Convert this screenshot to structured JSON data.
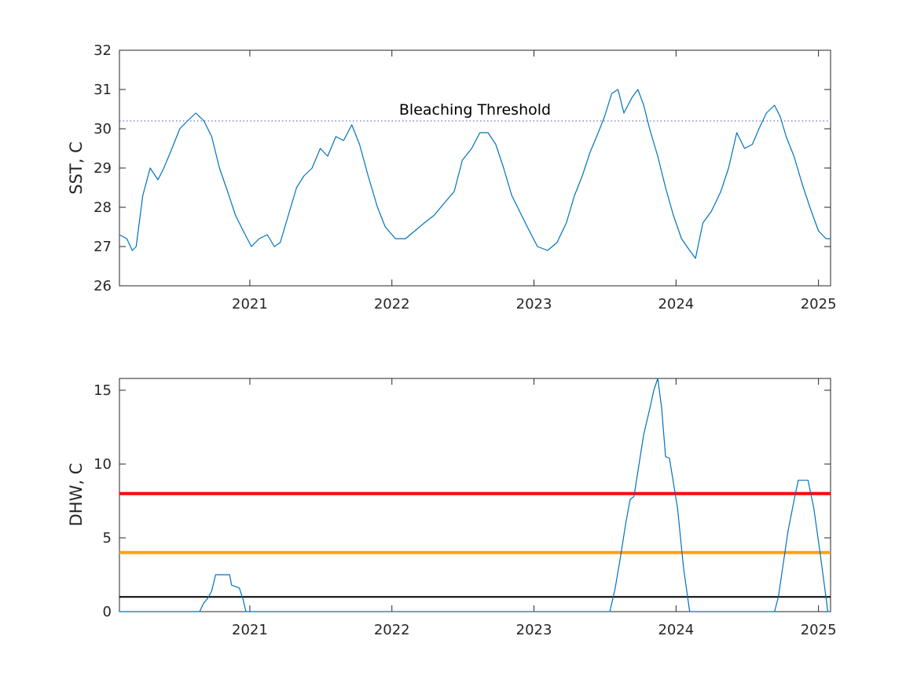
{
  "chart_data": [
    {
      "type": "line",
      "ylabel": "SST, C",
      "xlim": [
        "2020-02-01",
        "2025-02-01"
      ],
      "ylim": [
        26,
        32
      ],
      "yticks": [
        26,
        27,
        28,
        29,
        30,
        31,
        32
      ],
      "xticks": [
        {
          "date": "2021-01-01",
          "label": "2021"
        },
        {
          "date": "2022-01-01",
          "label": "2022"
        },
        {
          "date": "2023-01-01",
          "label": "2023"
        },
        {
          "date": "2024-01-01",
          "label": "2024"
        },
        {
          "date": "2025-01-01",
          "label": "2025"
        }
      ],
      "threshold": {
        "value": 30.2,
        "label": "Bleaching Threshold",
        "style": "dotted",
        "color": "#4a4ac0"
      },
      "series": [
        {
          "color": "#0072bd",
          "points": [
            [
              "2020-02-01",
              27.3
            ],
            [
              "2020-02-20",
              27.2
            ],
            [
              "2020-03-05",
              26.9
            ],
            [
              "2020-03-15",
              27.0
            ],
            [
              "2020-04-01",
              28.3
            ],
            [
              "2020-04-20",
              29.0
            ],
            [
              "2020-05-10",
              28.7
            ],
            [
              "2020-05-25",
              29.0
            ],
            [
              "2020-06-15",
              29.5
            ],
            [
              "2020-07-05",
              30.0
            ],
            [
              "2020-07-25",
              30.2
            ],
            [
              "2020-08-15",
              30.4
            ],
            [
              "2020-09-05",
              30.2
            ],
            [
              "2020-09-25",
              29.8
            ],
            [
              "2020-10-15",
              29.0
            ],
            [
              "2020-11-05",
              28.4
            ],
            [
              "2020-11-25",
              27.8
            ],
            [
              "2020-12-15",
              27.4
            ],
            [
              "2021-01-05",
              27.0
            ],
            [
              "2021-01-25",
              27.2
            ],
            [
              "2021-02-15",
              27.3
            ],
            [
              "2021-03-05",
              27.0
            ],
            [
              "2021-03-20",
              27.1
            ],
            [
              "2021-04-10",
              27.8
            ],
            [
              "2021-05-01",
              28.5
            ],
            [
              "2021-05-20",
              28.8
            ],
            [
              "2021-06-10",
              29.0
            ],
            [
              "2021-07-01",
              29.5
            ],
            [
              "2021-07-20",
              29.3
            ],
            [
              "2021-08-10",
              29.8
            ],
            [
              "2021-08-30",
              29.7
            ],
            [
              "2021-09-20",
              30.1
            ],
            [
              "2021-10-10",
              29.6
            ],
            [
              "2021-11-01",
              28.8
            ],
            [
              "2021-11-25",
              28.0
            ],
            [
              "2021-12-15",
              27.5
            ],
            [
              "2022-01-10",
              27.2
            ],
            [
              "2022-02-05",
              27.2
            ],
            [
              "2022-03-01",
              27.4
            ],
            [
              "2022-03-25",
              27.6
            ],
            [
              "2022-04-20",
              27.8
            ],
            [
              "2022-05-15",
              28.1
            ],
            [
              "2022-06-10",
              28.4
            ],
            [
              "2022-07-01",
              29.2
            ],
            [
              "2022-07-25",
              29.5
            ],
            [
              "2022-08-15",
              29.9
            ],
            [
              "2022-09-05",
              29.9
            ],
            [
              "2022-09-25",
              29.6
            ],
            [
              "2022-10-15",
              29.0
            ],
            [
              "2022-11-05",
              28.3
            ],
            [
              "2022-11-25",
              27.9
            ],
            [
              "2022-12-15",
              27.5
            ],
            [
              "2023-01-10",
              27.0
            ],
            [
              "2023-02-05",
              26.9
            ],
            [
              "2023-03-01",
              27.1
            ],
            [
              "2023-03-25",
              27.6
            ],
            [
              "2023-04-15",
              28.3
            ],
            [
              "2023-05-05",
              28.8
            ],
            [
              "2023-05-25",
              29.4
            ],
            [
              "2023-06-15",
              29.9
            ],
            [
              "2023-07-01",
              30.3
            ],
            [
              "2023-07-20",
              30.9
            ],
            [
              "2023-08-05",
              31.0
            ],
            [
              "2023-08-20",
              30.4
            ],
            [
              "2023-09-10",
              30.8
            ],
            [
              "2023-09-25",
              31.0
            ],
            [
              "2023-10-10",
              30.6
            ],
            [
              "2023-10-25",
              30.0
            ],
            [
              "2023-11-15",
              29.3
            ],
            [
              "2023-12-05",
              28.5
            ],
            [
              "2023-12-25",
              27.8
            ],
            [
              "2024-01-15",
              27.2
            ],
            [
              "2024-02-05",
              26.9
            ],
            [
              "2024-02-20",
              26.7
            ],
            [
              "2024-03-10",
              27.6
            ],
            [
              "2024-04-01",
              27.9
            ],
            [
              "2024-04-25",
              28.4
            ],
            [
              "2024-05-15",
              29.0
            ],
            [
              "2024-06-05",
              29.9
            ],
            [
              "2024-06-25",
              29.5
            ],
            [
              "2024-07-15",
              29.6
            ],
            [
              "2024-08-01",
              30.0
            ],
            [
              "2024-08-20",
              30.4
            ],
            [
              "2024-09-10",
              30.6
            ],
            [
              "2024-09-25",
              30.3
            ],
            [
              "2024-10-10",
              29.8
            ],
            [
              "2024-10-30",
              29.3
            ],
            [
              "2024-11-20",
              28.6
            ],
            [
              "2024-12-10",
              28.0
            ],
            [
              "2025-01-01",
              27.4
            ],
            [
              "2025-01-20",
              27.2
            ],
            [
              "2025-02-01",
              27.2
            ]
          ]
        }
      ]
    },
    {
      "type": "line",
      "ylabel": "DHW, C",
      "xlim": [
        "2020-02-01",
        "2025-02-01"
      ],
      "ylim": [
        0,
        15.8
      ],
      "yticks": [
        0,
        5,
        10,
        15
      ],
      "xticks": [
        {
          "date": "2021-01-01",
          "label": "2021"
        },
        {
          "date": "2022-01-01",
          "label": "2022"
        },
        {
          "date": "2023-01-01",
          "label": "2023"
        },
        {
          "date": "2024-01-01",
          "label": "2024"
        },
        {
          "date": "2025-01-01",
          "label": "2025"
        }
      ],
      "reference_lines": [
        {
          "value": 8,
          "color": "#ff0000",
          "width": 4
        },
        {
          "value": 4,
          "color": "#ffa500",
          "width": 4
        },
        {
          "value": 1,
          "color": "#000000",
          "width": 2
        }
      ],
      "series": [
        {
          "color": "#0072bd",
          "points": [
            [
              "2020-02-01",
              0
            ],
            [
              "2020-08-25",
              0
            ],
            [
              "2020-09-05",
              0.6
            ],
            [
              "2020-09-15",
              0.9
            ],
            [
              "2020-09-25",
              1.4
            ],
            [
              "2020-10-05",
              2.5
            ],
            [
              "2020-11-10",
              2.5
            ],
            [
              "2020-11-15",
              1.8
            ],
            [
              "2020-12-05",
              1.6
            ],
            [
              "2020-12-15",
              0.8
            ],
            [
              "2020-12-22",
              0
            ],
            [
              "2023-07-15",
              0
            ],
            [
              "2023-07-28",
              1.5
            ],
            [
              "2023-08-10",
              3.5
            ],
            [
              "2023-08-25",
              6.0
            ],
            [
              "2023-09-05",
              7.6
            ],
            [
              "2023-09-15",
              7.8
            ],
            [
              "2023-09-25",
              9.5
            ],
            [
              "2023-10-10",
              12.0
            ],
            [
              "2023-10-25",
              13.7
            ],
            [
              "2023-11-05",
              15.0
            ],
            [
              "2023-11-15",
              15.8
            ],
            [
              "2023-11-25",
              13.8
            ],
            [
              "2023-12-05",
              10.5
            ],
            [
              "2023-12-15",
              10.4
            ],
            [
              "2024-01-05",
              7.0
            ],
            [
              "2024-01-20",
              3.0
            ],
            [
              "2024-02-05",
              0
            ],
            [
              "2024-09-10",
              0
            ],
            [
              "2024-09-20",
              1.0
            ],
            [
              "2024-10-01",
              3.0
            ],
            [
              "2024-10-15",
              5.5
            ],
            [
              "2024-10-30",
              7.5
            ],
            [
              "2024-11-10",
              8.9
            ],
            [
              "2024-12-05",
              8.9
            ],
            [
              "2024-12-20",
              7.0
            ],
            [
              "2025-01-05",
              4.0
            ],
            [
              "2025-01-20",
              1.0
            ],
            [
              "2025-01-25",
              0
            ],
            [
              "2025-02-01",
              0
            ]
          ]
        }
      ]
    }
  ]
}
